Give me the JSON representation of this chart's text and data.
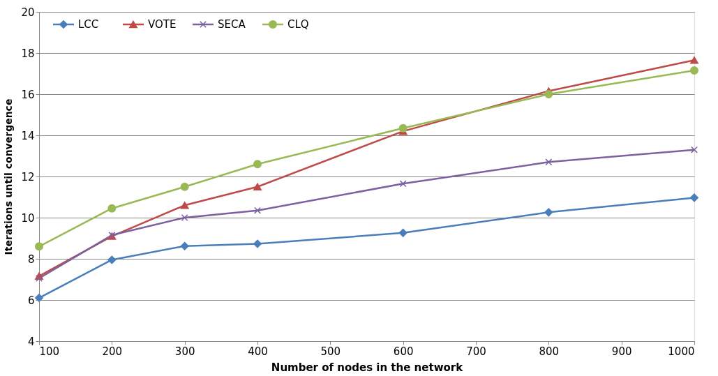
{
  "chart_data": {
    "type": "line",
    "xlabel": "Number of nodes in the network",
    "ylabel": "Iterations until convergence",
    "x": [
      100,
      200,
      300,
      400,
      600,
      800,
      1000
    ],
    "series": [
      {
        "name": "LCC",
        "color": "#4a7ebb",
        "marker": "diamond",
        "values": [
          6.1,
          7.95,
          8.62,
          8.73,
          9.26,
          10.26,
          10.97
        ]
      },
      {
        "name": "VOTE",
        "color": "#be4b48",
        "marker": "triangle",
        "values": [
          7.16,
          9.1,
          10.6,
          11.5,
          14.2,
          16.15,
          17.65
        ]
      },
      {
        "name": "SECA",
        "color": "#7d60a0",
        "marker": "cross",
        "values": [
          7.05,
          9.15,
          10.0,
          10.35,
          11.65,
          12.7,
          13.3
        ]
      },
      {
        "name": "CLQ",
        "color": "#98b954",
        "marker": "circle",
        "values": [
          8.6,
          10.45,
          11.5,
          12.6,
          14.35,
          16.0,
          17.15
        ]
      }
    ],
    "xlim": [
      100,
      1000
    ],
    "xticks": [
      100,
      200,
      300,
      400,
      500,
      600,
      700,
      800,
      900,
      1000
    ],
    "ylim": [
      4,
      20
    ],
    "yticks": [
      4,
      6,
      8,
      10,
      12,
      14,
      16,
      18,
      20
    ],
    "grid": "y",
    "legend": "top left",
    "line_style": "solid"
  }
}
